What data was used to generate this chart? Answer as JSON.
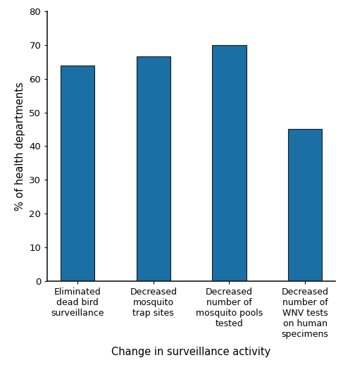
{
  "categories": [
    "Eliminated\ndead bird\nsurveillance",
    "Decreased\nmosquito\ntrap sites",
    "Decreased\nnumber of\nmosquito pools\ntested",
    "Decreased\nnumber of\nWNV tests\non human\nspecimens"
  ],
  "values": [
    63.83,
    66.67,
    70.0,
    45.1
  ],
  "bar_color": "#1a6fa5",
  "bar_edge_color": "#1a1a1a",
  "ylabel": "% of health departments",
  "xlabel": "Change in surveillance activity",
  "ylim": [
    0,
    80
  ],
  "yticks": [
    0,
    10,
    20,
    30,
    40,
    50,
    60,
    70,
    80
  ],
  "bar_width": 0.45,
  "xlabel_fontsize": 10.5,
  "ylabel_fontsize": 10.5,
  "tick_fontsize": 9.5,
  "xtick_fontsize": 9.0,
  "background_color": "#ffffff",
  "spine_color": "#1a1a1a"
}
